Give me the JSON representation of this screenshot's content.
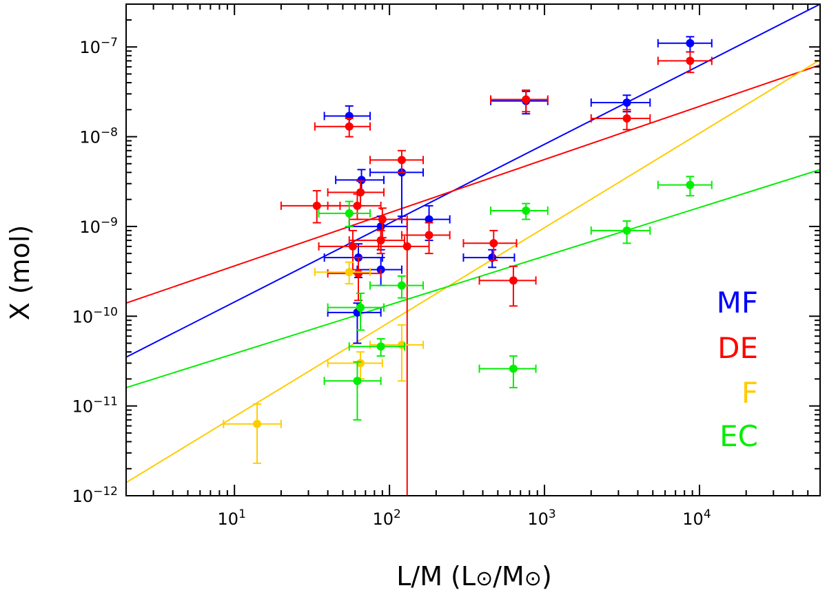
{
  "chart_data": {
    "type": "scatter",
    "xlabel": "L/M (L⊙/M⊙)",
    "ylabel": "X (mol)",
    "xscale": "log",
    "yscale": "log",
    "xlim": [
      2,
      60000
    ],
    "ylim": [
      1e-12,
      3e-07
    ],
    "x_ticks": [
      {
        "value": 10,
        "label": "10",
        "exp": "1"
      },
      {
        "value": 100,
        "label": "10",
        "exp": "2"
      },
      {
        "value": 1000,
        "label": "10",
        "exp": "3"
      },
      {
        "value": 10000,
        "label": "10",
        "exp": "4"
      }
    ],
    "y_ticks": [
      {
        "value": 1e-12,
        "label": "10",
        "exp": "−12"
      },
      {
        "value": 1e-11,
        "label": "10",
        "exp": "−11"
      },
      {
        "value": 1e-10,
        "label": "10",
        "exp": "−10"
      },
      {
        "value": 1e-09,
        "label": "10",
        "exp": "−9"
      },
      {
        "value": 1e-08,
        "label": "10",
        "exp": "−8"
      },
      {
        "value": 1e-07,
        "label": "10",
        "exp": "−7"
      }
    ],
    "legend_position": "right-middle",
    "series": [
      {
        "name": "MF",
        "color": "#0000ff",
        "fit": [
          [
            2,
            3.5e-11
          ],
          [
            60000,
            3e-07
          ]
        ],
        "points": [
          {
            "x": 55,
            "y": 1.7e-08,
            "xerr": [
              38,
              75
            ],
            "yerr": [
              1.3e-08,
              2.2e-08
            ]
          },
          {
            "x": 66,
            "y": 3.3e-09,
            "xerr": [
              45,
              92
            ],
            "yerr": [
              2.4e-09,
              4.3e-09
            ]
          },
          {
            "x": 120,
            "y": 4e-09,
            "xerr": [
              75,
              165
            ],
            "yerr": [
              1.3e-09,
              5.5e-09
            ]
          },
          {
            "x": 88,
            "y": 1e-09,
            "xerr": [
              55,
              130
            ],
            "yerr": [
              5.5e-10,
              1.3e-09
            ]
          },
          {
            "x": 180,
            "y": 1.2e-09,
            "xerr": [
              120,
              245
            ],
            "yerr": [
              7e-10,
              1.7e-09
            ]
          },
          {
            "x": 63,
            "y": 4.5e-10,
            "xerr": [
              38,
              90
            ],
            "yerr": [
              2.7e-10,
              6.4e-10
            ]
          },
          {
            "x": 88,
            "y": 3.3e-10,
            "xerr": [
              62,
              120
            ],
            "yerr": [
              2.2e-10,
              4.5e-10
            ]
          },
          {
            "x": 62,
            "y": 1.1e-10,
            "xerr": [
              40,
              88
            ],
            "yerr": [
              5e-11,
              1.4e-10
            ]
          },
          {
            "x": 460,
            "y": 4.5e-10,
            "xerr": [
              300,
              640
            ],
            "yerr": [
              3.5e-10,
              5.5e-10
            ]
          },
          {
            "x": 760,
            "y": 2.5e-08,
            "xerr": [
              450,
              1050
            ],
            "yerr": [
              1.8e-08,
              3.2e-08
            ]
          },
          {
            "x": 3400,
            "y": 2.4e-08,
            "xerr": [
              2000,
              4800
            ],
            "yerr": [
              1.9e-08,
              2.9e-08
            ]
          },
          {
            "x": 8700,
            "y": 1.1e-07,
            "xerr": [
              5400,
              12000
            ],
            "yerr": [
              8.8e-08,
              1.3e-07
            ]
          }
        ]
      },
      {
        "name": "DE",
        "color": "#ff0000",
        "fit": [
          [
            2,
            1.4e-10
          ],
          [
            60000,
            6.3e-08
          ]
        ],
        "points": [
          {
            "x": 55,
            "y": 1.3e-08,
            "xerr": [
              33,
              75
            ],
            "yerr": [
              1e-08,
              1.6e-08
            ]
          },
          {
            "x": 34,
            "y": 1.7e-09,
            "xerr": [
              20,
              48
            ],
            "yerr": [
              1.1e-09,
              2.5e-09
            ]
          },
          {
            "x": 65,
            "y": 2.4e-09,
            "xerr": [
              40,
              92
            ],
            "yerr": [
              1.7e-09,
              3.2e-09
            ]
          },
          {
            "x": 62,
            "y": 1.7e-09,
            "xerr": [
              40,
              88
            ],
            "yerr": [
              1.2e-09,
              2.3e-09
            ]
          },
          {
            "x": 120,
            "y": 5.5e-09,
            "xerr": [
              75,
              165
            ],
            "yerr": [
              4e-09,
              7e-09
            ]
          },
          {
            "x": 90,
            "y": 1.2e-09,
            "xerr": [
              55,
              130
            ],
            "yerr": [
              7.5e-10,
              1.6e-09
            ]
          },
          {
            "x": 58,
            "y": 6e-10,
            "xerr": [
              35,
              85
            ],
            "yerr": [
              3.3e-10,
              9e-10
            ]
          },
          {
            "x": 88,
            "y": 7e-10,
            "xerr": [
              55,
              125
            ],
            "yerr": [
              5e-10,
              9e-10
            ]
          },
          {
            "x": 130,
            "y": 6e-10,
            "xerr": [
              85,
              180
            ],
            "yerr": [
              1e-12,
              1.2e-09
            ]
          },
          {
            "x": 180,
            "y": 8e-10,
            "xerr": [
              120,
              245
            ],
            "yerr": [
              5e-10,
              1.1e-09
            ]
          },
          {
            "x": 63,
            "y": 3e-10,
            "xerr": [
              40,
              88
            ],
            "yerr": [
              1.5e-10,
              4.5e-10
            ]
          },
          {
            "x": 470,
            "y": 6.5e-10,
            "xerr": [
              300,
              660
            ],
            "yerr": [
              4.2e-10,
              9e-10
            ]
          },
          {
            "x": 630,
            "y": 2.5e-10,
            "xerr": [
              380,
              880
            ],
            "yerr": [
              1.3e-10,
              3.6e-10
            ]
          },
          {
            "x": 760,
            "y": 2.6e-08,
            "xerr": [
              450,
              1050
            ],
            "yerr": [
              1.9e-08,
              3.3e-08
            ]
          },
          {
            "x": 3400,
            "y": 1.6e-08,
            "xerr": [
              2000,
              4800
            ],
            "yerr": [
              1.2e-08,
              2e-08
            ]
          },
          {
            "x": 8700,
            "y": 7e-08,
            "xerr": [
              5400,
              12000
            ],
            "yerr": [
              5.2e-08,
              8.8e-08
            ]
          }
        ]
      },
      {
        "name": "F",
        "color": "#ffcc00",
        "fit": [
          [
            2,
            1.4e-12
          ],
          [
            60000,
            7.2e-08
          ]
        ],
        "points": [
          {
            "x": 14,
            "y": 6.3e-12,
            "xerr": [
              8.5,
              20
            ],
            "yerr": [
              2.3e-12,
              1.05e-11
            ]
          },
          {
            "x": 55,
            "y": 3.1e-10,
            "xerr": [
              33,
              75
            ],
            "yerr": [
              2.3e-10,
              4e-10
            ]
          },
          {
            "x": 65,
            "y": 3e-11,
            "xerr": [
              40,
              90
            ],
            "yerr": [
              2e-11,
              4e-11
            ]
          },
          {
            "x": 120,
            "y": 4.8e-11,
            "xerr": [
              75,
              165
            ],
            "yerr": [
              1.9e-11,
              8e-11
            ]
          }
        ]
      },
      {
        "name": "EC",
        "color": "#00ee00",
        "fit": [
          [
            2,
            1.6e-11
          ],
          [
            60000,
            4.3e-09
          ]
        ],
        "points": [
          {
            "x": 55,
            "y": 1.4e-09,
            "xerr": [
              35,
              75
            ],
            "yerr": [
              1e-09,
              1.9e-09
            ]
          },
          {
            "x": 120,
            "y": 2.2e-10,
            "xerr": [
              75,
              165
            ],
            "yerr": [
              1.6e-10,
              2.8e-10
            ]
          },
          {
            "x": 65,
            "y": 1.25e-10,
            "xerr": [
              40,
              92
            ],
            "yerr": [
              7e-11,
              1.8e-10
            ]
          },
          {
            "x": 88,
            "y": 4.6e-11,
            "xerr": [
              55,
              125
            ],
            "yerr": [
              3.6e-11,
              5.6e-11
            ]
          },
          {
            "x": 62,
            "y": 1.9e-11,
            "xerr": [
              38,
              88
            ],
            "yerr": [
              7e-12,
              3.1e-11
            ]
          },
          {
            "x": 630,
            "y": 2.6e-11,
            "xerr": [
              380,
              880
            ],
            "yerr": [
              1.6e-11,
              3.6e-11
            ]
          },
          {
            "x": 760,
            "y": 1.5e-09,
            "xerr": [
              450,
              1050
            ],
            "yerr": [
              1.2e-09,
              1.8e-09
            ]
          },
          {
            "x": 3400,
            "y": 9e-10,
            "xerr": [
              2000,
              4800
            ],
            "yerr": [
              6.5e-10,
              1.15e-09
            ]
          },
          {
            "x": 8700,
            "y": 2.9e-09,
            "xerr": [
              5400,
              12000
            ],
            "yerr": [
              2.2e-09,
              3.6e-09
            ]
          }
        ]
      }
    ]
  }
}
